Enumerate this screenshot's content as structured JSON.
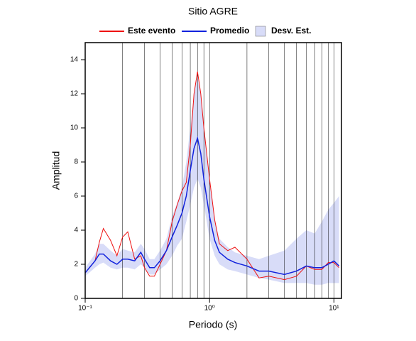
{
  "chart_data": {
    "type": "line",
    "title": "Sitio AGRE",
    "xlabel": "Periodo (s)",
    "ylabel": "Amplitud",
    "log_x": true,
    "grid": true,
    "xlim": [
      0.1,
      11.5
    ],
    "ylim": [
      0,
      15
    ],
    "xticks": [
      {
        "value": 0.1,
        "label": "10⁻¹"
      },
      {
        "value": 1,
        "label": "10⁰"
      },
      {
        "value": 10,
        "label": "10¹"
      }
    ],
    "xminorticks": [
      0.2,
      0.3,
      0.4,
      0.5,
      0.6,
      0.7,
      0.8,
      0.9,
      2,
      3,
      4,
      5,
      6,
      7,
      8,
      9
    ],
    "yticks": [
      0,
      2,
      4,
      6,
      8,
      10,
      12,
      14
    ],
    "x": [
      0.1,
      0.12,
      0.13,
      0.14,
      0.16,
      0.18,
      0.2,
      0.22,
      0.25,
      0.28,
      0.3,
      0.33,
      0.36,
      0.4,
      0.45,
      0.5,
      0.55,
      0.6,
      0.65,
      0.7,
      0.75,
      0.8,
      0.85,
      0.9,
      1.0,
      1.1,
      1.2,
      1.4,
      1.6,
      2.0,
      2.5,
      3,
      4,
      5,
      6,
      7,
      8,
      9,
      10,
      11
    ],
    "band": {
      "name": "Desv. Est.",
      "color": "#d8dcf8",
      "lower": [
        1.3,
        1.8,
        2.0,
        2.1,
        1.8,
        1.7,
        1.8,
        1.8,
        1.7,
        2.0,
        1.8,
        1.4,
        1.4,
        1.7,
        2.0,
        2.5,
        3.1,
        3.5,
        4.5,
        5.5,
        6.5,
        7,
        6.5,
        5.5,
        3.5,
        2.5,
        2.0,
        1.7,
        1.6,
        1.4,
        1.2,
        1.1,
        0.9,
        0.9,
        0.9,
        0.8,
        0.8,
        0.9,
        0.9,
        0.9
      ],
      "upper": [
        1.8,
        2.6,
        3.2,
        3.2,
        2.8,
        2.5,
        2.9,
        2.8,
        2.7,
        3.2,
        2.9,
        2.3,
        2.3,
        2.8,
        3.5,
        4.8,
        5.6,
        6.5,
        8,
        10,
        12,
        13,
        12,
        10,
        6.8,
        4.6,
        3.5,
        3.0,
        2.7,
        2.5,
        2.3,
        2.5,
        2.8,
        3.5,
        4,
        3.8,
        4.5,
        5.2,
        5.6,
        6.0
      ]
    },
    "series": [
      {
        "name": "Este evento",
        "color": "#ee1111",
        "values": [
          1.5,
          2.2,
          3.3,
          4.1,
          3.4,
          2.5,
          3.6,
          3.9,
          2.3,
          2.5,
          1.8,
          1.3,
          1.3,
          2.0,
          2.8,
          4.5,
          5.5,
          6.3,
          6.8,
          9,
          12,
          13.3,
          12,
          10,
          7,
          4.6,
          3.2,
          2.8,
          3.0,
          2.3,
          1.2,
          1.3,
          1.1,
          1.3,
          1.9,
          1.7,
          1.7,
          2.1,
          2.1,
          1.8
        ]
      },
      {
        "name": "Promedio",
        "color": "#1122dd",
        "values": [
          1.5,
          2.2,
          2.6,
          2.6,
          2.2,
          2.0,
          2.3,
          2.3,
          2.2,
          2.7,
          2.3,
          1.8,
          1.8,
          2.2,
          2.8,
          3.6,
          4.3,
          5.0,
          6.0,
          7.5,
          8.8,
          9.4,
          8.5,
          7,
          4.8,
          3.4,
          2.7,
          2.3,
          2.1,
          1.9,
          1.6,
          1.6,
          1.4,
          1.6,
          1.9,
          1.8,
          1.8,
          2.0,
          2.2,
          1.9
        ]
      }
    ]
  }
}
